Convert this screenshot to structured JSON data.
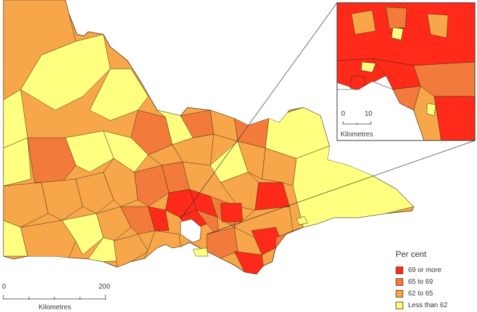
{
  "legend": {
    "title": "Per cent",
    "items": [
      {
        "label": "69 or more",
        "color": "#ff2a1a"
      },
      {
        "label": "65 to 69",
        "color": "#f27b3c"
      },
      {
        "label": "62 to 65",
        "color": "#f8a64a"
      },
      {
        "label": "Less than 62",
        "color": "#ffff80"
      }
    ]
  },
  "main_scale": {
    "start": "0",
    "end": "200",
    "unit": "Kilometres"
  },
  "inset_scale": {
    "start": "0",
    "end": "10",
    "unit": "Kilometres"
  },
  "colors": {
    "boundary": "#3a2a10",
    "background": "#ffffff",
    "text": "#333333"
  }
}
